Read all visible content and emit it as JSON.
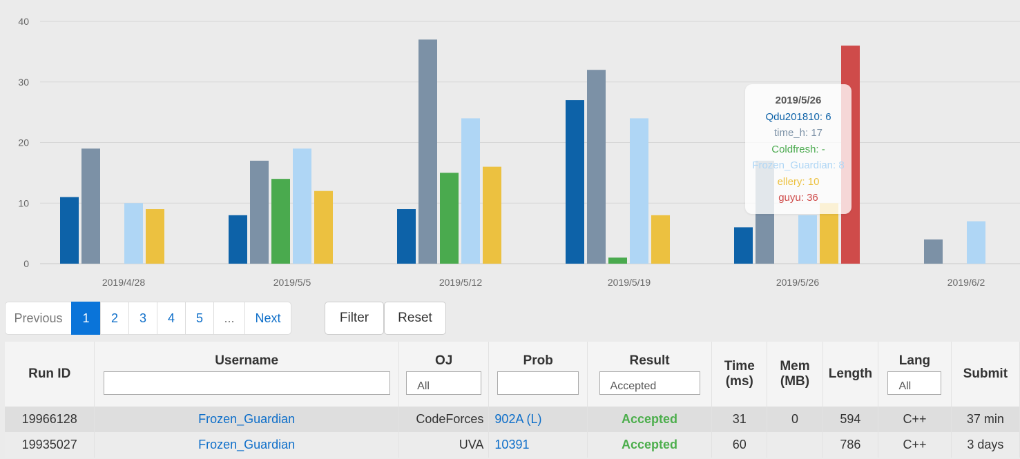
{
  "chart_data": {
    "type": "bar",
    "categories": [
      "2019/4/28",
      "2019/5/5",
      "2019/5/12",
      "2019/5/19",
      "2019/5/26",
      "2019/6/2"
    ],
    "ylim": [
      0,
      40
    ],
    "yticks": [
      0,
      10,
      20,
      30,
      40
    ],
    "grid": true,
    "series": [
      {
        "name": "Qdu201810",
        "color": "#0d62a8",
        "values": [
          11,
          8,
          9,
          27,
          6,
          null
        ]
      },
      {
        "name": "time_h",
        "color": "#7c91a6",
        "values": [
          19,
          17,
          37,
          32,
          17,
          4
        ]
      },
      {
        "name": "Coldfresh",
        "color": "#4aaa4e",
        "values": [
          null,
          14,
          15,
          1,
          null,
          null
        ]
      },
      {
        "name": "Frozen_Guardian",
        "color": "#afd6f5",
        "values": [
          10,
          19,
          24,
          24,
          8,
          7
        ]
      },
      {
        "name": "ellery",
        "color": "#ecc140",
        "values": [
          9,
          12,
          16,
          8,
          10,
          null
        ]
      },
      {
        "name": "guyu",
        "color": "#cf4b4a",
        "values": [
          null,
          null,
          null,
          null,
          36,
          null
        ]
      }
    ]
  },
  "tooltip": {
    "date": "2019/5/26",
    "rows": [
      {
        "text": "Qdu201810: 6",
        "color": "#0d62a8"
      },
      {
        "text": "time_h: 17",
        "color": "#7c91a6"
      },
      {
        "text": "Coldfresh: -",
        "color": "#4aaa4e"
      },
      {
        "text": "Frozen_Guardian: 8",
        "color": "#afd6f5"
      },
      {
        "text": "ellery: 10",
        "color": "#ecc140"
      },
      {
        "text": "guyu: 36",
        "color": "#cf4b4a"
      }
    ]
  },
  "pagination": {
    "previous": "Previous",
    "pages": [
      "1",
      "2",
      "3",
      "4",
      "5"
    ],
    "ellipsis": "...",
    "next": "Next",
    "active": "1"
  },
  "buttons": {
    "filter": "Filter",
    "reset": "Reset"
  },
  "table": {
    "headers": {
      "run_id": "Run ID",
      "username": "Username",
      "oj": "OJ",
      "prob": "Prob",
      "result": "Result",
      "time_line1": "Time",
      "time_line2": "(ms)",
      "mem_line1": "Mem",
      "mem_line2": "(MB)",
      "length": "Length",
      "lang": "Lang",
      "submit": "Submit"
    },
    "filters": {
      "username": "",
      "oj": "All",
      "prob": "",
      "result": "Accepted",
      "lang": "All"
    },
    "rows": [
      {
        "run_id": "19966128",
        "username": "Frozen_Guardian",
        "oj": "CodeForces",
        "prob": "902A",
        "prob_extra": "(L)",
        "result": "Accepted",
        "time": "31",
        "mem": "0",
        "length": "594",
        "lang": "C++",
        "submit": "37 min"
      },
      {
        "run_id": "19935027",
        "username": "Frozen_Guardian",
        "oj": "UVA",
        "prob": "10391",
        "prob_extra": "",
        "result": "Accepted",
        "time": "60",
        "mem": "",
        "length": "786",
        "lang": "C++",
        "submit": "3 days"
      }
    ]
  }
}
